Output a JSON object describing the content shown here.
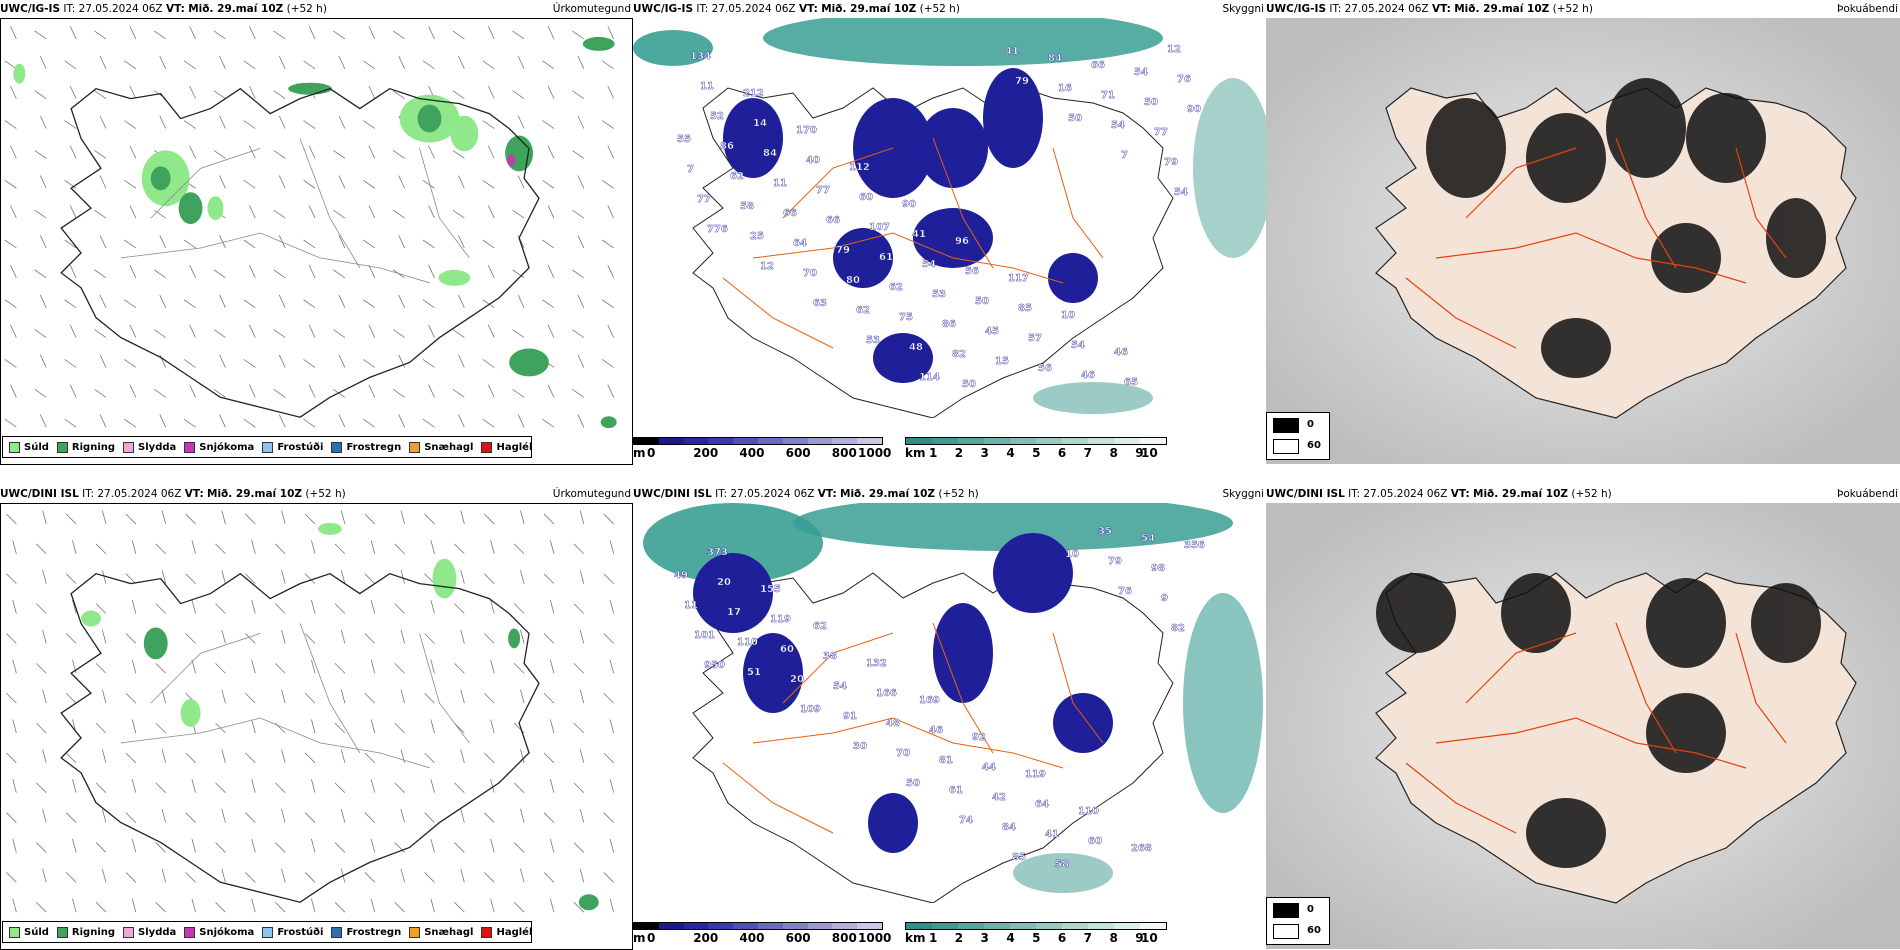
{
  "colors": {
    "precip_light": "#8fe88a",
    "precip_mod": "#3fa35e",
    "slydda": "#f0a8d8",
    "snow": "#c03bb0",
    "frostudi": "#8ec4ee",
    "frostregn": "#2f6fb0",
    "snaehagl": "#f0a020",
    "hagl": "#e01010",
    "vis_low": "#1f1f9a",
    "vis_sea": "#3a9e93",
    "land_fill": "#f4e4d8",
    "roads": "#e86010"
  },
  "rows": [
    {
      "precip": {
        "title": {
          "model": "UWC/IG-IS",
          "it_label": "IT:",
          "it_value": "27.05.2024 06Z",
          "vt_label": "VT:",
          "vt_value": "Mið. 29.maí 10Z",
          "lead": "(+52 h)"
        },
        "name": "Úrkomutegund"
      },
      "vis": {
        "title": {
          "model": "UWC/IG-IS",
          "it_label": "IT:",
          "it_value": "27.05.2024 06Z",
          "vt_label": "VT:",
          "vt_value": "Mið. 29.maí 10Z",
          "lead": "(+52 h)"
        },
        "name": "Skyggni",
        "labels": [
          "134",
          "212",
          "170",
          "112",
          "90",
          "96",
          "117",
          "10",
          "46",
          "12",
          "11",
          "14",
          "40",
          "60",
          "41",
          "56",
          "85",
          "54",
          "65",
          "76",
          "52",
          "84",
          "77",
          "107",
          "54",
          "50",
          "57",
          "46",
          "54",
          "90",
          "86",
          "11",
          "66",
          "61",
          "53",
          "45",
          "56",
          "66",
          "50",
          "55",
          "62",
          "66",
          "79",
          "62",
          "86",
          "15",
          "84",
          "71",
          "77",
          "7",
          "58",
          "64",
          "80",
          "75",
          "82",
          "41",
          "16",
          "54",
          "79",
          "77",
          "25",
          "70",
          "62",
          "48",
          "50",
          "79",
          "50",
          "7",
          "54",
          "776",
          "12",
          "63",
          "53",
          "114"
        ]
      },
      "cloud": {
        "title": {
          "model": "UWC/IG-IS",
          "it_label": "IT:",
          "it_value": "27.05.2024 06Z",
          "vt_label": "VT:",
          "vt_value": "Mið. 29.maí 10Z",
          "lead": "(+52 h)"
        },
        "name": "Þokuábendi"
      }
    },
    {
      "precip": {
        "title": {
          "model": "UWC/DINI ISL",
          "it_label": "IT:",
          "it_value": "27.05.2024 06Z",
          "vt_label": "VT:",
          "vt_value": "Mið. 29.maí 10Z",
          "lead": "(+52 h)"
        },
        "name": "Úrkomutegund"
      },
      "vis": {
        "title": {
          "model": "UWC/DINI ISL",
          "it_label": "IT:",
          "it_value": "27.05.2024 06Z",
          "vt_label": "VT:",
          "vt_value": "Mið. 29.maí 10Z",
          "lead": "(+52 h)"
        },
        "name": "Skyggni",
        "labels": [
          "373",
          "155",
          "62",
          "132",
          "169",
          "92",
          "119",
          "110",
          "268",
          "356",
          "20",
          "119",
          "38",
          "166",
          "46",
          "44",
          "64",
          "60",
          "54",
          "49",
          "17",
          "60",
          "54",
          "48",
          "81",
          "42",
          "41",
          "35",
          "98",
          "11",
          "110",
          "20",
          "91",
          "70",
          "61",
          "84",
          "58",
          "79",
          "9",
          "101",
          "51",
          "109",
          "30",
          "50",
          "74",
          "85",
          "10",
          "76",
          "82",
          "950"
        ]
      },
      "cloud": {
        "title": {
          "model": "UWC/DINI ISL",
          "it_label": "IT:",
          "it_value": "27.05.2024 06Z",
          "vt_label": "VT:",
          "vt_value": "Mið. 29.maí 10Z",
          "lead": "(+52 h)"
        },
        "name": "Þokuábendi"
      }
    }
  ],
  "precip_legend": [
    {
      "label": "Súld",
      "color": "#8fe88a"
    },
    {
      "label": "Rigning",
      "color": "#3fa35e"
    },
    {
      "label": "Slydda",
      "color": "#f0a8d8"
    },
    {
      "label": "Snjókoma",
      "color": "#c03bb0"
    },
    {
      "label": "Frostúði",
      "color": "#8ec4ee"
    },
    {
      "label": "Frostregn",
      "color": "#2f6fb0"
    },
    {
      "label": "Snæhagl",
      "color": "#f0a020"
    },
    {
      "label": "Haglél",
      "color": "#e01010"
    }
  ],
  "height_bar": {
    "unit": "m",
    "ticks": [
      "0",
      "200",
      "400",
      "600",
      "800",
      "1000"
    ],
    "colors": [
      "#000000",
      "#1a1a8a",
      "#2828a0",
      "#3a3ab0",
      "#5050b8",
      "#6a6ac0",
      "#8282c8",
      "#9a9ad0",
      "#b0b0d8",
      "#c8c8e4"
    ]
  },
  "dist_bar": {
    "unit": "km",
    "ticks": [
      "1",
      "2",
      "3",
      "4",
      "5",
      "6",
      "7",
      "8",
      "9",
      "10"
    ],
    "colors": [
      "#2f8f86",
      "#3e9a90",
      "#55a69c",
      "#6bb2a8",
      "#82beb5",
      "#98cac2",
      "#afd6cf",
      "#c5e2dc",
      "#dceeea",
      "#f2f8f6"
    ]
  },
  "cloud_key": {
    "ticks": [
      "0",
      "60"
    ]
  }
}
